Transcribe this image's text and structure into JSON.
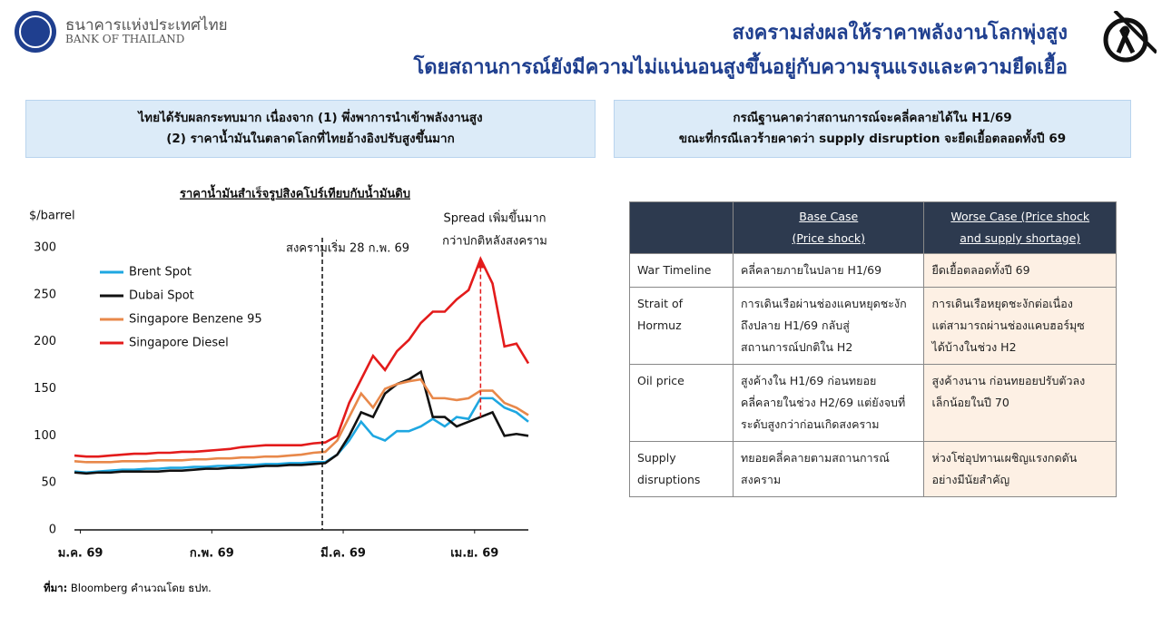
{
  "header": {
    "bank_thai": "ธนาคารแห่งประเทศไทย",
    "bank_en": "BANK OF THAILAND",
    "title_line1": "สงครามส่งผลให้ราคาพลังงานโลกพุ่งสูง",
    "title_line2": "โดยสถานการณ์ยังมีความไม่แน่นอนสูงขึ้นอยู่กับความรุนแรงและความยืดเยื้อ"
  },
  "panels": [
    {
      "lines": [
        "ไทยได้รับผลกระทบมาก เนื่องจาก (1) พึ่งพาการนำเข้าพลังงานสูง",
        "(2) ราคาน้ำมันในตลาดโลกที่ไทยอ้างอิงปรับสูงขึ้นมาก"
      ]
    },
    {
      "lines": [
        "กรณีฐานคาดว่าสถานการณ์จะคลี่คลายได้ใน H1/69",
        "ขณะที่กรณีเลวร้ายคาดว่า supply disruption จะยืดเยื้อตลอดทั้งปี 69"
      ]
    }
  ],
  "chart_data": {
    "type": "line",
    "title": "ราคาน้ำมันสำเร็จรูปสิงคโปร์เทียบกับน้ำมันดิบ",
    "y_label": "$/barrel",
    "x": [
      0,
      2,
      4,
      6,
      8,
      10,
      12,
      14,
      16,
      18,
      20,
      22,
      24,
      26,
      28,
      30,
      32,
      34,
      36,
      38,
      40,
      42,
      44,
      46,
      48,
      50,
      52,
      54,
      56,
      58,
      60,
      62,
      64,
      66,
      68,
      70,
      72,
      74,
      76
    ],
    "xlim": [
      0,
      76
    ],
    "xticks": [
      {
        "value": 1,
        "label": "ม.ค. 69"
      },
      {
        "value": 23,
        "label": "ก.พ. 69"
      },
      {
        "value": 45,
        "label": "มี.ค. 69"
      },
      {
        "value": 67,
        "label": "เม.ย. 69"
      }
    ],
    "ylim": [
      0,
      300
    ],
    "yticks": [
      0,
      50,
      100,
      150,
      200,
      250,
      300
    ],
    "grid": false,
    "legend": "top-left",
    "series": [
      {
        "name": "Brent Spot",
        "color": "#1ea7e1",
        "values": [
          62,
          61,
          62,
          63,
          64,
          64,
          65,
          65,
          66,
          66,
          67,
          67,
          68,
          68,
          69,
          69,
          70,
          70,
          71,
          71,
          72,
          72,
          80,
          95,
          115,
          100,
          95,
          105,
          105,
          110,
          118,
          110,
          120,
          118,
          140,
          140,
          130,
          125,
          115
        ]
      },
      {
        "name": "Dubai Spot",
        "color": "#111111",
        "values": [
          61,
          60,
          61,
          61,
          62,
          62,
          62,
          62,
          63,
          63,
          64,
          65,
          65,
          66,
          66,
          67,
          68,
          68,
          69,
          69,
          70,
          71,
          80,
          100,
          125,
          120,
          145,
          155,
          160,
          168,
          120,
          120,
          110,
          115,
          120,
          125,
          100,
          102,
          100
        ]
      },
      {
        "name": "Singapore Benzene 95",
        "color": "#e8884a",
        "values": [
          73,
          72,
          72,
          72,
          73,
          73,
          73,
          74,
          74,
          74,
          75,
          75,
          76,
          76,
          77,
          77,
          78,
          78,
          79,
          80,
          82,
          83,
          95,
          120,
          145,
          130,
          150,
          155,
          158,
          160,
          140,
          140,
          138,
          140,
          148,
          148,
          135,
          130,
          122
        ]
      },
      {
        "name": "Singapore Diesel",
        "color": "#e31b1b",
        "values": [
          79,
          78,
          78,
          79,
          80,
          81,
          81,
          82,
          82,
          83,
          83,
          84,
          85,
          86,
          88,
          89,
          90,
          90,
          90,
          90,
          92,
          93,
          100,
          135,
          160,
          185,
          170,
          190,
          202,
          220,
          232,
          232,
          245,
          255,
          288,
          262,
          195,
          198,
          177
        ]
      }
    ],
    "annotations": [
      {
        "text": "สงครามเริ่ม 28 ก.พ. 69",
        "x": 41.5
      },
      {
        "lines": [
          "Spread เพิ่มขึ้นมาก",
          "กว่าปกติหลังสงคราม"
        ],
        "color": "#e31b1b"
      }
    ]
  },
  "source": {
    "label": "ที่มา:",
    "text": "Bloomberg คำนวณโดย ธปท."
  },
  "table": {
    "header": [
      [
        "Base Case",
        "(Price shock)"
      ],
      [
        "Worse Case (Price shock",
        "and supply shortage)"
      ]
    ],
    "rows": [
      [
        [
          "War Timeline"
        ],
        [
          "คลี่คลายภายในปลาย H1/69"
        ],
        [
          "ยืดเยื้อตลอดทั้งปี 69"
        ]
      ],
      [
        [
          "Strait of",
          "Hormuz"
        ],
        [
          "การเดินเรือผ่านช่องแคบหยุดชะงัก",
          "ถึงปลาย H1/69 กลับสู่",
          "สถานการณ์ปกติใน H2"
        ],
        [
          "การเดินเรือหยุดชะงักต่อเนื่อง",
          "แต่สามารถผ่านช่องแคบฮอร์มุซ",
          "ได้บ้างในช่วง H2"
        ]
      ],
      [
        [
          "Oil price"
        ],
        [
          "สูงค้างใน H1/69 ก่อนทยอย",
          "คลี่คลายในช่วง H2/69 แต่ยังจบที่",
          "ระดับสูงกว่าก่อนเกิดสงคราม"
        ],
        [
          "สูงค้างนาน ก่อนทยอยปรับตัวลง",
          "เล็กน้อยในปี 70"
        ]
      ],
      [
        [
          "Supply",
          "disruptions"
        ],
        [
          "ทยอยคลี่คลายตามสถานการณ์",
          "สงคราม"
        ],
        [
          "ห่วงโซ่อุปทานเผชิญแรงกดดัน",
          "อย่างมีนัยสำคัญ"
        ]
      ]
    ]
  }
}
